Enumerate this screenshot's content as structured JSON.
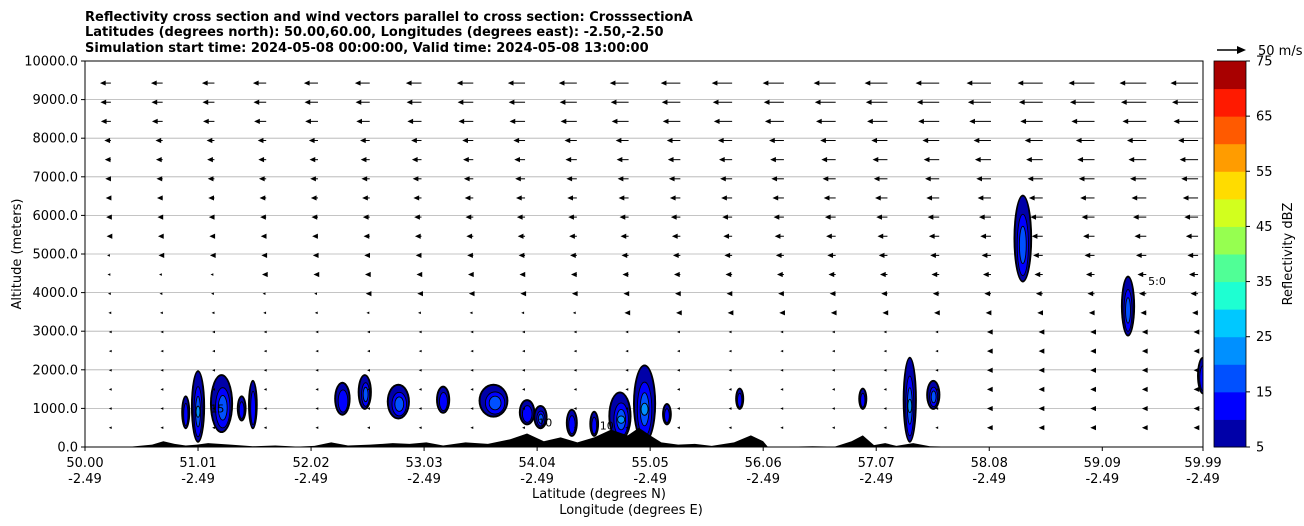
{
  "chart_data": {
    "type": "contour",
    "title_lines": [
      "Reflectivity cross section and wind vectors parallel to cross section: CrosssectionA",
      "Latitudes (degrees north): 50.00,60.00, Longitudes (degrees east): -2.50,-2.50",
      "Simulation start time: 2024-05-08 00:00:00, Valid time: 2024-05-08 13:00:00"
    ],
    "xlabel_line1": "Latitude (degrees N)",
    "xlabel_line2": "Longitude (degrees E)",
    "ylabel": "Altitude (meters)",
    "xlim": [
      50.0,
      59.99
    ],
    "ylim": [
      0,
      10000
    ],
    "grid": "horizontal",
    "x_ticks": [
      {
        "lat": "50.00",
        "lon": "-2.49",
        "value": 50.0
      },
      {
        "lat": "51.01",
        "lon": "-2.49",
        "value": 51.01
      },
      {
        "lat": "52.02",
        "lon": "-2.49",
        "value": 52.02
      },
      {
        "lat": "53.03",
        "lon": "-2.49",
        "value": 53.03
      },
      {
        "lat": "54.04",
        "lon": "-2.49",
        "value": 54.04
      },
      {
        "lat": "55.05",
        "lon": "-2.49",
        "value": 55.05
      },
      {
        "lat": "56.06",
        "lon": "-2.49",
        "value": 56.06
      },
      {
        "lat": "57.07",
        "lon": "-2.49",
        "value": 57.07
      },
      {
        "lat": "58.08",
        "lon": "-2.49",
        "value": 58.08
      },
      {
        "lat": "59.09",
        "lon": "-2.49",
        "value": 59.09
      },
      {
        "lat": "59.99",
        "lon": "-2.49",
        "value": 59.99
      }
    ],
    "y_ticks": [
      {
        "label": "0.0",
        "value": 0
      },
      {
        "label": "1000.0",
        "value": 1000
      },
      {
        "label": "2000.0",
        "value": 2000
      },
      {
        "label": "3000.0",
        "value": 3000
      },
      {
        "label": "4000.0",
        "value": 4000
      },
      {
        "label": "5000.0",
        "value": 5000
      },
      {
        "label": "6000.0",
        "value": 6000
      },
      {
        "label": "7000.0",
        "value": 7000
      },
      {
        "label": "8000.0",
        "value": 8000
      },
      {
        "label": "9000.0",
        "value": 9000
      },
      {
        "label": "10000.0",
        "value": 10000
      }
    ],
    "colorbar": {
      "label": "Reflectivity dBZ",
      "levels": [
        5,
        10,
        15,
        20,
        25,
        30,
        35,
        40,
        45,
        50,
        55,
        60,
        65,
        70,
        75
      ],
      "tick_labels": [
        "5",
        "15",
        "25",
        "35",
        "45",
        "55",
        "65",
        "75"
      ],
      "colors": [
        "#0000a8",
        "#0000ff",
        "#0050ff",
        "#0090ff",
        "#00c8ff",
        "#1effd2",
        "#50ff96",
        "#96ff50",
        "#d2ff1e",
        "#ffdc00",
        "#ff9c00",
        "#ff5a00",
        "#ff1a00",
        "#a80000"
      ]
    },
    "vector_key": {
      "label": "50 m/s"
    },
    "terrain": [
      [
        50.0,
        0
      ],
      [
        50.4,
        5
      ],
      [
        50.6,
        60
      ],
      [
        50.7,
        150
      ],
      [
        50.8,
        80
      ],
      [
        50.9,
        40
      ],
      [
        51.0,
        60
      ],
      [
        51.1,
        100
      ],
      [
        51.3,
        60
      ],
      [
        51.5,
        20
      ],
      [
        51.7,
        40
      ],
      [
        51.9,
        10
      ],
      [
        52.05,
        30
      ],
      [
        52.2,
        120
      ],
      [
        52.35,
        40
      ],
      [
        52.55,
        60
      ],
      [
        52.75,
        100
      ],
      [
        52.9,
        80
      ],
      [
        53.05,
        120
      ],
      [
        53.2,
        40
      ],
      [
        53.4,
        120
      ],
      [
        53.6,
        80
      ],
      [
        53.8,
        200
      ],
      [
        53.95,
        350
      ],
      [
        54.1,
        150
      ],
      [
        54.25,
        250
      ],
      [
        54.4,
        120
      ],
      [
        54.55,
        250
      ],
      [
        54.7,
        450
      ],
      [
        54.85,
        300
      ],
      [
        54.95,
        500
      ],
      [
        55.05,
        300
      ],
      [
        55.15,
        120
      ],
      [
        55.3,
        60
      ],
      [
        55.45,
        80
      ],
      [
        55.6,
        30
      ],
      [
        55.8,
        120
      ],
      [
        55.95,
        300
      ],
      [
        56.06,
        150
      ],
      [
        56.1,
        10
      ],
      [
        56.25,
        5
      ],
      [
        56.5,
        20
      ],
      [
        56.7,
        10
      ],
      [
        56.85,
        150
      ],
      [
        56.95,
        300
      ],
      [
        57.05,
        50
      ],
      [
        57.15,
        100
      ],
      [
        57.25,
        30
      ],
      [
        57.4,
        100
      ],
      [
        57.55,
        20
      ],
      [
        57.7,
        10
      ],
      [
        58.0,
        10
      ],
      [
        58.4,
        5
      ],
      [
        59.99,
        0
      ]
    ],
    "cells": [
      {
        "lat": 51.01,
        "z0": 150,
        "z1": 1950,
        "w": 0.05,
        "max_dbz": 20,
        "spin": 0.0
      },
      {
        "lat": 50.9,
        "z0": 500,
        "z1": 1300,
        "w": 0.025,
        "max_dbz": 10,
        "spin": 0.1
      },
      {
        "lat": 51.22,
        "z0": 400,
        "z1": 1850,
        "w": 0.09,
        "max_dbz": 15,
        "spin": 0.4
      },
      {
        "lat": 51.5,
        "z0": 500,
        "z1": 1700,
        "w": 0.03,
        "max_dbz": 10,
        "spin": 0.2
      },
      {
        "lat": 51.4,
        "z0": 700,
        "z1": 1300,
        "w": 0.03,
        "max_dbz": 10,
        "spin": 0.0
      },
      {
        "lat": 52.3,
        "z0": 850,
        "z1": 1650,
        "w": 0.06,
        "max_dbz": 10,
        "spin": 0.3
      },
      {
        "lat": 52.5,
        "z0": 1000,
        "z1": 1850,
        "w": 0.05,
        "max_dbz": 15,
        "spin": 0.5
      },
      {
        "lat": 52.8,
        "z0": 750,
        "z1": 1600,
        "w": 0.09,
        "max_dbz": 15,
        "spin": 0.3
      },
      {
        "lat": 53.2,
        "z0": 900,
        "z1": 1550,
        "w": 0.05,
        "max_dbz": 10,
        "spin": 0.2
      },
      {
        "lat": 53.65,
        "z0": 800,
        "z1": 1600,
        "w": 0.12,
        "max_dbz": 15,
        "spin": 0.4
      },
      {
        "lat": 53.95,
        "z0": 600,
        "z1": 1200,
        "w": 0.06,
        "max_dbz": 10,
        "spin": 0.1
      },
      {
        "lat": 54.07,
        "z0": 500,
        "z1": 1050,
        "w": 0.05,
        "max_dbz": 15,
        "spin": 0.2
      },
      {
        "lat": 54.35,
        "z0": 300,
        "z1": 950,
        "w": 0.04,
        "max_dbz": 10,
        "spin": 0.1
      },
      {
        "lat": 54.55,
        "z0": 300,
        "z1": 900,
        "w": 0.03,
        "max_dbz": 10,
        "spin": 0.0
      },
      {
        "lat": 54.78,
        "z0": 200,
        "z1": 1400,
        "w": 0.09,
        "max_dbz": 25,
        "spin": 0.4
      },
      {
        "lat": 55.0,
        "z0": 150,
        "z1": 2100,
        "w": 0.09,
        "max_dbz": 35,
        "spin": 0.0
      },
      {
        "lat": 55.2,
        "z0": 600,
        "z1": 1100,
        "w": 0.03,
        "max_dbz": 10,
        "spin": 0.0
      },
      {
        "lat": 55.85,
        "z0": 1000,
        "z1": 1500,
        "w": 0.02,
        "max_dbz": 10,
        "spin": 0.0
      },
      {
        "lat": 56.95,
        "z0": 1000,
        "z1": 1500,
        "w": 0.02,
        "max_dbz": 10,
        "spin": 0.0
      },
      {
        "lat": 57.37,
        "z0": 150,
        "z1": 2300,
        "w": 0.05,
        "max_dbz": 25,
        "spin": 0.0
      },
      {
        "lat": 57.58,
        "z0": 1000,
        "z1": 1700,
        "w": 0.05,
        "max_dbz": 15,
        "spin": 0.2
      },
      {
        "lat": 58.38,
        "z0": 4300,
        "z1": 6500,
        "w": 0.07,
        "max_dbz": 15,
        "spin": 0.0
      },
      {
        "lat": 59.32,
        "z0": 2900,
        "z1": 4400,
        "w": 0.05,
        "max_dbz": 15,
        "spin": 0.0
      },
      {
        "lat": 59.99,
        "z0": 1400,
        "z1": 2300,
        "w": 0.04,
        "max_dbz": 10,
        "spin": 0.0
      }
    ],
    "contour_labels": [
      {
        "text": "5:0",
        "lat": 59.5,
        "z": 4200
      },
      {
        "text": "15",
        "lat": 51.12,
        "z": 900
      },
      {
        "text": "10",
        "lat": 54.6,
        "z": 450
      },
      {
        "text": "10",
        "lat": 54.05,
        "z": 530
      }
    ],
    "wind_vectors": {
      "x_start": 50.0,
      "x_step": 0.4626,
      "x_count": 22,
      "z_start": 500,
      "z_step": 496,
      "z_count": 19,
      "note": "u component (m/s, negative = toward lower latitude) grows with height and latitude"
    }
  }
}
